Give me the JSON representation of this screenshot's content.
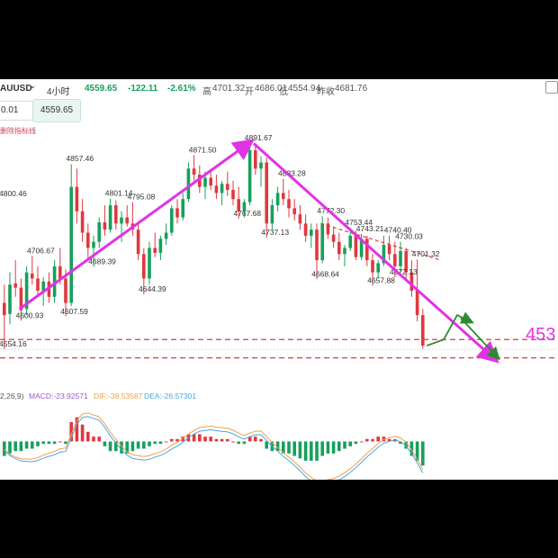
{
  "header": {
    "symbol": "AUUSD",
    "dropdown_glyph": "⌄",
    "timeframe": "4小时",
    "price": "4559.65",
    "change": "-122.11",
    "change_pct": "-2.61%",
    "high_label": "高",
    "high": "4701.32",
    "open_label": "开",
    "open": "4686.01",
    "low_label": "低",
    "low": "4554.94",
    "prev_close_label": "昨收",
    "prev_close": "4681.76"
  },
  "order": {
    "quantity": "0.01",
    "price": "4559.65"
  },
  "indicator_note": "删除指标线",
  "colors": {
    "up": "#17a05c",
    "down": "#e0383e",
    "trend_arrow": "#e232e6",
    "projection_arrow": "#2e8b2e",
    "dashed_level": "#e0383e",
    "macd_line": "#4aa6e8",
    "signal_line": "#f0a04a"
  },
  "target_level_label": "453",
  "macd_legend": {
    "params": "2,26,9)",
    "macd": "MACD:-23.92571",
    "dif": "DIF:-38.53587",
    "dea": "DEA:-26.57301"
  },
  "chart_data": {
    "type": "candlestick",
    "title": "",
    "price_range": [
      4510,
      4930
    ],
    "annotations": [
      {
        "text": "4857.46",
        "price": 4857.46,
        "bar": 12
      },
      {
        "text": "4871.50",
        "price": 4871.5,
        "bar": 34
      },
      {
        "text": "4891.67",
        "price": 4891.67,
        "bar": 44
      },
      {
        "text": "4833.28",
        "price": 4833.28,
        "bar": 50
      },
      {
        "text": "4801.14",
        "price": 4801.14,
        "bar": 19
      },
      {
        "text": "4795.08",
        "price": 4795.08,
        "bar": 23
      },
      {
        "text": "4800.46",
        "price": 4800.46,
        "bar": 0
      },
      {
        "text": "4706.67",
        "price": 4706.67,
        "bar": 5
      },
      {
        "text": "4689.39",
        "price": 4689.39,
        "bar": 16
      },
      {
        "text": "4600.93",
        "price": 4600.93,
        "bar": 3
      },
      {
        "text": "4607.59",
        "price": 4607.59,
        "bar": 11
      },
      {
        "text": "4644.39",
        "price": 4644.39,
        "bar": 25
      },
      {
        "text": "4767.68",
        "price": 4767.68,
        "bar": 42
      },
      {
        "text": "4737.13",
        "price": 4737.13,
        "bar": 47
      },
      {
        "text": "4772.30",
        "price": 4772.3,
        "bar": 57
      },
      {
        "text": "4753.44",
        "price": 4753.44,
        "bar": 62
      },
      {
        "text": "4743.21",
        "price": 4743.21,
        "bar": 64
      },
      {
        "text": "4740.40",
        "price": 4740.4,
        "bar": 69
      },
      {
        "text": "4730.03",
        "price": 4730.03,
        "bar": 71
      },
      {
        "text": "4701.32",
        "price": 4701.32,
        "bar": 74
      },
      {
        "text": "4668.64",
        "price": 4668.64,
        "bar": 56
      },
      {
        "text": "4672.13",
        "price": 4672.13,
        "bar": 70
      },
      {
        "text": "4657.88",
        "price": 4657.88,
        "bar": 66
      },
      {
        "text": "4554.16",
        "price": 4554.16,
        "bar": 0
      }
    ],
    "candles": [
      {
        "o": 4630,
        "h": 4660,
        "l": 4554,
        "c": 4610
      },
      {
        "o": 4612,
        "h": 4680,
        "l": 4595,
        "c": 4660
      },
      {
        "o": 4662,
        "h": 4700,
        "l": 4640,
        "c": 4655
      },
      {
        "o": 4655,
        "h": 4670,
        "l": 4601,
        "c": 4618
      },
      {
        "o": 4620,
        "h": 4690,
        "l": 4610,
        "c": 4680
      },
      {
        "o": 4678,
        "h": 4707,
        "l": 4660,
        "c": 4670
      },
      {
        "o": 4670,
        "h": 4690,
        "l": 4640,
        "c": 4650
      },
      {
        "o": 4650,
        "h": 4672,
        "l": 4625,
        "c": 4665
      },
      {
        "o": 4665,
        "h": 4680,
        "l": 4630,
        "c": 4640
      },
      {
        "o": 4640,
        "h": 4700,
        "l": 4630,
        "c": 4690
      },
      {
        "o": 4690,
        "h": 4720,
        "l": 4660,
        "c": 4670
      },
      {
        "o": 4670,
        "h": 4685,
        "l": 4608,
        "c": 4630
      },
      {
        "o": 4630,
        "h": 4857,
        "l": 4625,
        "c": 4820
      },
      {
        "o": 4820,
        "h": 4850,
        "l": 4760,
        "c": 4780
      },
      {
        "o": 4780,
        "h": 4800,
        "l": 4730,
        "c": 4745
      },
      {
        "o": 4745,
        "h": 4760,
        "l": 4700,
        "c": 4720
      },
      {
        "o": 4720,
        "h": 4740,
        "l": 4689,
        "c": 4730
      },
      {
        "o": 4730,
        "h": 4770,
        "l": 4720,
        "c": 4762
      },
      {
        "o": 4762,
        "h": 4790,
        "l": 4740,
        "c": 4750
      },
      {
        "o": 4750,
        "h": 4801,
        "l": 4745,
        "c": 4790
      },
      {
        "o": 4790,
        "h": 4798,
        "l": 4750,
        "c": 4760
      },
      {
        "o": 4760,
        "h": 4780,
        "l": 4730,
        "c": 4770
      },
      {
        "o": 4770,
        "h": 4790,
        "l": 4755,
        "c": 4760
      },
      {
        "o": 4760,
        "h": 4795,
        "l": 4740,
        "c": 4750
      },
      {
        "o": 4750,
        "h": 4760,
        "l": 4700,
        "c": 4710
      },
      {
        "o": 4710,
        "h": 4720,
        "l": 4644,
        "c": 4670
      },
      {
        "o": 4670,
        "h": 4730,
        "l": 4660,
        "c": 4720
      },
      {
        "o": 4720,
        "h": 4745,
        "l": 4705,
        "c": 4712
      },
      {
        "o": 4712,
        "h": 4740,
        "l": 4700,
        "c": 4735
      },
      {
        "o": 4735,
        "h": 4760,
        "l": 4725,
        "c": 4745
      },
      {
        "o": 4745,
        "h": 4790,
        "l": 4740,
        "c": 4785
      },
      {
        "o": 4785,
        "h": 4800,
        "l": 4760,
        "c": 4770
      },
      {
        "o": 4770,
        "h": 4810,
        "l": 4765,
        "c": 4800
      },
      {
        "o": 4800,
        "h": 4860,
        "l": 4795,
        "c": 4850
      },
      {
        "o": 4850,
        "h": 4872,
        "l": 4830,
        "c": 4840
      },
      {
        "o": 4840,
        "h": 4855,
        "l": 4810,
        "c": 4820
      },
      {
        "o": 4820,
        "h": 4845,
        "l": 4800,
        "c": 4835
      },
      {
        "o": 4835,
        "h": 4850,
        "l": 4815,
        "c": 4822
      },
      {
        "o": 4822,
        "h": 4840,
        "l": 4800,
        "c": 4810
      },
      {
        "o": 4810,
        "h": 4830,
        "l": 4790,
        "c": 4825
      },
      {
        "o": 4825,
        "h": 4845,
        "l": 4805,
        "c": 4815
      },
      {
        "o": 4815,
        "h": 4830,
        "l": 4790,
        "c": 4800
      },
      {
        "o": 4800,
        "h": 4820,
        "l": 4768,
        "c": 4780
      },
      {
        "o": 4780,
        "h": 4800,
        "l": 4770,
        "c": 4795
      },
      {
        "o": 4795,
        "h": 4892,
        "l": 4790,
        "c": 4880
      },
      {
        "o": 4880,
        "h": 4891,
        "l": 4840,
        "c": 4850
      },
      {
        "o": 4850,
        "h": 4870,
        "l": 4820,
        "c": 4860
      },
      {
        "o": 4860,
        "h": 4868,
        "l": 4737,
        "c": 4760
      },
      {
        "o": 4760,
        "h": 4800,
        "l": 4750,
        "c": 4790
      },
      {
        "o": 4790,
        "h": 4820,
        "l": 4780,
        "c": 4810
      },
      {
        "o": 4810,
        "h": 4833,
        "l": 4790,
        "c": 4800
      },
      {
        "o": 4800,
        "h": 4815,
        "l": 4770,
        "c": 4785
      },
      {
        "o": 4785,
        "h": 4800,
        "l": 4765,
        "c": 4775
      },
      {
        "o": 4775,
        "h": 4790,
        "l": 4750,
        "c": 4760
      },
      {
        "o": 4760,
        "h": 4775,
        "l": 4730,
        "c": 4740
      },
      {
        "o": 4740,
        "h": 4760,
        "l": 4720,
        "c": 4750
      },
      {
        "o": 4750,
        "h": 4760,
        "l": 4669,
        "c": 4700
      },
      {
        "o": 4700,
        "h": 4772,
        "l": 4695,
        "c": 4760
      },
      {
        "o": 4760,
        "h": 4770,
        "l": 4735,
        "c": 4742
      },
      {
        "o": 4742,
        "h": 4755,
        "l": 4720,
        "c": 4730
      },
      {
        "o": 4730,
        "h": 4745,
        "l": 4700,
        "c": 4710
      },
      {
        "o": 4710,
        "h": 4725,
        "l": 4690,
        "c": 4720
      },
      {
        "o": 4720,
        "h": 4753,
        "l": 4715,
        "c": 4740
      },
      {
        "o": 4740,
        "h": 4748,
        "l": 4700,
        "c": 4705
      },
      {
        "o": 4705,
        "h": 4743,
        "l": 4700,
        "c": 4735
      },
      {
        "o": 4735,
        "h": 4740,
        "l": 4690,
        "c": 4700
      },
      {
        "o": 4700,
        "h": 4710,
        "l": 4658,
        "c": 4680
      },
      {
        "o": 4680,
        "h": 4700,
        "l": 4670,
        "c": 4695
      },
      {
        "o": 4695,
        "h": 4740,
        "l": 4690,
        "c": 4725
      },
      {
        "o": 4725,
        "h": 4740,
        "l": 4700,
        "c": 4710
      },
      {
        "o": 4710,
        "h": 4730,
        "l": 4672,
        "c": 4690
      },
      {
        "o": 4690,
        "h": 4730,
        "l": 4680,
        "c": 4715
      },
      {
        "o": 4715,
        "h": 4720,
        "l": 4670,
        "c": 4680
      },
      {
        "o": 4680,
        "h": 4700,
        "l": 4640,
        "c": 4650
      },
      {
        "o": 4650,
        "h": 4701,
        "l": 4600,
        "c": 4610
      },
      {
        "o": 4610,
        "h": 4620,
        "l": 4555,
        "c": 4560
      }
    ],
    "dashed_levels": [
      4570,
      4540
    ],
    "macd_hist": [
      -6,
      -5,
      -4,
      -4,
      -3,
      -3,
      -2,
      -1,
      -1,
      -1,
      0,
      -1,
      8,
      10,
      7,
      4,
      2,
      2,
      -2,
      -4,
      -4,
      -5,
      -5,
      -4,
      -3,
      -3,
      -2,
      -1,
      -1,
      0,
      1,
      1,
      2,
      3,
      3,
      3,
      2,
      2,
      1,
      1,
      1,
      0,
      -1,
      -1,
      2,
      2,
      1,
      -3,
      -4,
      -4,
      -5,
      -5,
      -6,
      -7,
      -8,
      -8,
      -8,
      -6,
      -5,
      -5,
      -4,
      -3,
      -2,
      -1,
      0,
      1,
      1,
      2,
      2,
      1,
      1,
      -1,
      -3,
      -6,
      -8,
      -10
    ],
    "macd_range": [
      -14,
      14
    ]
  }
}
